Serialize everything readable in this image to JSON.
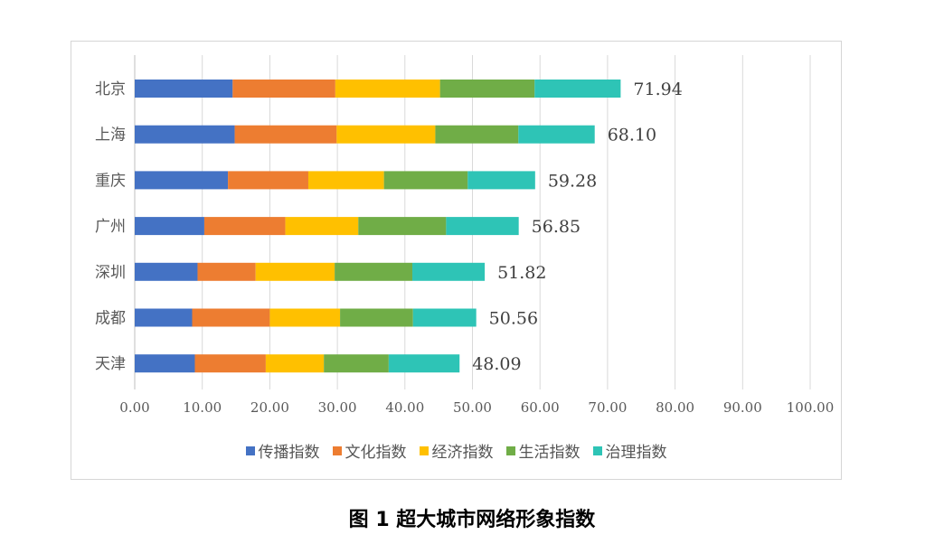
{
  "chart_data": {
    "type": "bar",
    "orientation": "horizontal",
    "stacked": true,
    "categories": [
      "北京",
      "上海",
      "重庆",
      "广州",
      "深圳",
      "成都",
      "天津"
    ],
    "series": [
      {
        "name": "传播指数",
        "color": "#4472C4",
        "values": [
          14.5,
          14.8,
          13.8,
          10.3,
          9.3,
          8.5,
          8.9
        ]
      },
      {
        "name": "文化指数",
        "color": "#ED7D31",
        "values": [
          15.2,
          15.1,
          11.9,
          12.0,
          8.6,
          11.5,
          10.5
        ]
      },
      {
        "name": "经济指数",
        "color": "#FFC000",
        "values": [
          15.5,
          14.6,
          11.2,
          10.8,
          11.7,
          10.4,
          8.6
        ]
      },
      {
        "name": "生活指数",
        "color": "#70AD47",
        "values": [
          14.0,
          12.3,
          12.4,
          13.0,
          11.5,
          10.8,
          9.6
        ]
      },
      {
        "name": "治理指数",
        "color": "#2EC4B6",
        "values": [
          12.74,
          11.3,
          9.98,
          10.75,
          10.72,
          9.36,
          10.49
        ]
      }
    ],
    "totals": [
      "71.94",
      "68.10",
      "59.28",
      "56.85",
      "51.82",
      "50.56",
      "48.09"
    ],
    "x_ticks": [
      "0.00",
      "10.00",
      "20.00",
      "30.00",
      "40.00",
      "50.00",
      "60.00",
      "70.00",
      "80.00",
      "90.00",
      "100.00"
    ],
    "xlim": [
      0,
      100
    ],
    "grid": "vertical",
    "legend_position": "bottom"
  },
  "caption": "图 1 超大城市网络形象指数"
}
